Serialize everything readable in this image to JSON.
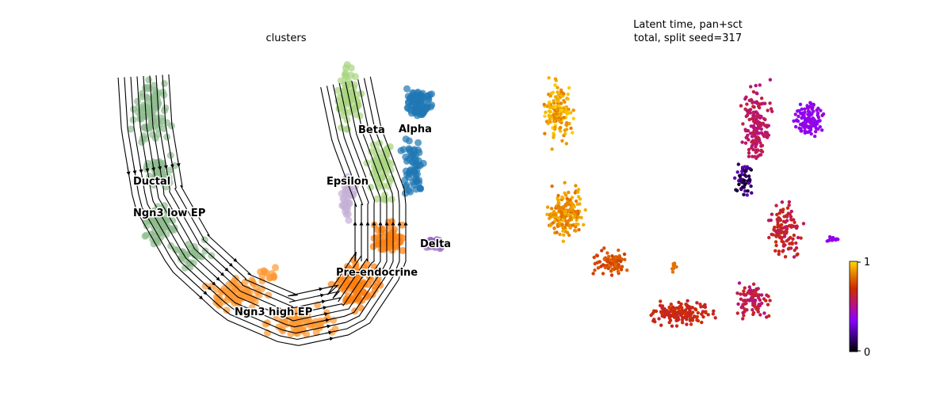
{
  "chart_data": [
    {
      "type": "scatter",
      "title": "clusters",
      "embedding": "UMAP with RNA-velocity streamlines",
      "axes_visible": false,
      "streamlines": true,
      "clusters": [
        {
          "name": "Ductal",
          "color": "#8fbc8f"
        },
        {
          "name": "Ngn3 low EP",
          "color": "#8fbc8f"
        },
        {
          "name": "Ngn3 high EP",
          "color": "#ff9933"
        },
        {
          "name": "Pre-endocrine",
          "color": "#ff7f0e"
        },
        {
          "name": "Beta",
          "color": "#a8d47f"
        },
        {
          "name": "Alpha",
          "color": "#1f77b4"
        },
        {
          "name": "Delta",
          "color": "#9467bd"
        },
        {
          "name": "Epsilon",
          "color": "#c5b0d5"
        }
      ]
    },
    {
      "type": "scatter",
      "title": "Latent time, pan+sct",
      "subtitle": "total, split seed=317",
      "axes_visible": false,
      "colormap": "gnuplot",
      "colorbar": {
        "min": 0,
        "max": 1,
        "ticks": [
          "0",
          "1"
        ],
        "position": "right"
      }
    }
  ]
}
